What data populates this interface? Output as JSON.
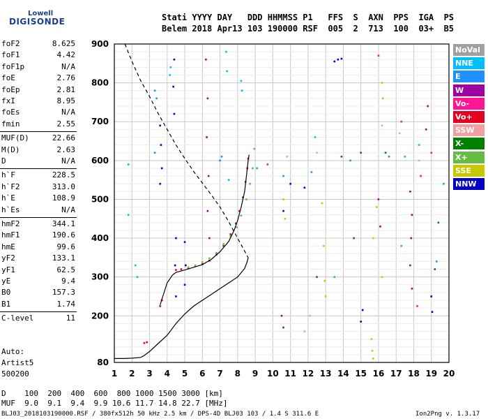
{
  "logo": {
    "line1": "Lowell",
    "line2": "DIGISONDE"
  },
  "header": {
    "line1": "Stati YYYY DAY   DDD HHMMSS P1   FFS  S  AXN  PPS  IGA  PS",
    "line2": "Belem 2018 Apr13 103 190000 RSF  005  2  713  100  03+  B5"
  },
  "params": [
    {
      "group": [
        {
          "name": "foF2",
          "value": "8.625"
        },
        {
          "name": "foF1",
          "value": "4.42"
        },
        {
          "name": "foF1p",
          "value": "N/A"
        },
        {
          "name": "foE",
          "value": "2.76"
        },
        {
          "name": "foEp",
          "value": "2.81"
        },
        {
          "name": "fxI",
          "value": "8.95"
        },
        {
          "name": "foEs",
          "value": "N/A"
        },
        {
          "name": "fmin",
          "value": "2.55"
        }
      ]
    },
    {
      "group": [
        {
          "name": "MUF(D)",
          "value": "22.66"
        },
        {
          "name": "M(D)",
          "value": "2.63"
        },
        {
          "name": "D",
          "value": "N/A"
        }
      ]
    },
    {
      "group": [
        {
          "name": "h`F",
          "value": "228.5"
        },
        {
          "name": "h`F2",
          "value": "313.0"
        },
        {
          "name": "h`E",
          "value": "108.9"
        },
        {
          "name": "h`Es",
          "value": "N/A"
        }
      ]
    },
    {
      "group": [
        {
          "name": "hmF2",
          "value": "344.1"
        },
        {
          "name": "hmF1",
          "value": "190.6"
        },
        {
          "name": "hmE",
          "value": "99.6"
        },
        {
          "name": "yF2",
          "value": "133.1"
        },
        {
          "name": "yF1",
          "value": "62.5"
        },
        {
          "name": "yE",
          "value": "9.4"
        },
        {
          "name": "B0",
          "value": "157.3"
        },
        {
          "name": "B1",
          "value": "1.74"
        }
      ]
    },
    {
      "group": [
        {
          "name": "C-level",
          "value": "11"
        }
      ]
    }
  ],
  "auto": {
    "line1": "Auto:",
    "line2": "Artist5",
    "line3": "500200"
  },
  "footer": {
    "line1": "D    100  200  400  600  800 1000 1500 3000 [km]",
    "line2": "MUF  9.0  9.1  9.4  9.9 10.6 11.7 14.8 22.7 [MHz]"
  },
  "credit": {
    "left": "BLJ03_2018103190000.RSF / 380fx512h 50 kHz 2.5 km / DPS-4D BLJ03 103 / 1.4 S 311.6 E",
    "right": "Ion2Png v. 1.3.17"
  },
  "legend": [
    {
      "label": "NoVal",
      "color": "#a0a0a0"
    },
    {
      "label": "NNE",
      "color": "#00bfff"
    },
    {
      "label": "E",
      "color": "#1e90ff"
    },
    {
      "label": "W",
      "color": "#a000a0"
    },
    {
      "label": "Vo-",
      "color": "#ff1493"
    },
    {
      "label": "Vo+",
      "color": "#e60020"
    },
    {
      "label": "SSW",
      "color": "#f0a0a0"
    },
    {
      "label": "X-",
      "color": "#008000"
    },
    {
      "label": "X+",
      "color": "#66bb44"
    },
    {
      "label": "SSE",
      "color": "#c8c800"
    },
    {
      "label": "NNW",
      "color": "#0000c8"
    }
  ],
  "chart_data": {
    "type": "scatter",
    "xlabel": "",
    "ylabel": "",
    "xlim": [
      1,
      20
    ],
    "ylim": [
      80,
      900
    ],
    "x_ticks": [
      1,
      2,
      3,
      4,
      5,
      6,
      7,
      8,
      9,
      10,
      11,
      12,
      13,
      14,
      15,
      16,
      17,
      18,
      19,
      20
    ],
    "y_ticks": [
      80,
      200,
      300,
      400,
      500,
      600,
      700,
      800,
      900
    ],
    "grid": true,
    "series": [
      {
        "name": "Vo+",
        "color": "#e60020",
        "points": [
          [
            2.7,
            130
          ],
          [
            2.85,
            132
          ],
          [
            3.6,
            225
          ],
          [
            3.7,
            240
          ],
          [
            4.5,
            318
          ],
          [
            4.8,
            320
          ],
          [
            5.2,
            323
          ],
          [
            5.6,
            328
          ],
          [
            6.0,
            333
          ],
          [
            6.4,
            342
          ],
          [
            6.8,
            358
          ],
          [
            7.2,
            380
          ],
          [
            7.6,
            410
          ],
          [
            7.9,
            438
          ],
          [
            8.1,
            470
          ],
          [
            8.3,
            505
          ],
          [
            8.45,
            545
          ],
          [
            8.55,
            580
          ],
          [
            8.6,
            605
          ]
        ]
      },
      {
        "name": "X+",
        "color": "#66bb44",
        "points": [
          [
            5.2,
            325
          ],
          [
            5.6,
            330
          ],
          [
            6.0,
            338
          ],
          [
            6.4,
            348
          ],
          [
            6.8,
            362
          ],
          [
            7.2,
            385
          ],
          [
            7.6,
            405
          ],
          [
            7.95,
            428
          ],
          [
            8.2,
            458
          ],
          [
            8.5,
            500
          ],
          [
            8.7,
            540
          ],
          [
            8.85,
            580
          ],
          [
            8.95,
            630
          ]
        ]
      },
      {
        "name": "W",
        "color": "#a000a0",
        "points": [
          [
            6.2,
            860
          ],
          [
            6.3,
            760
          ],
          [
            6.25,
            660
          ],
          [
            6.35,
            560
          ],
          [
            6.3,
            470
          ],
          [
            6.4,
            400
          ],
          [
            17.8,
            520
          ],
          [
            17.9,
            460
          ],
          [
            17.85,
            400
          ],
          [
            17.8,
            330
          ],
          [
            17.9,
            270
          ],
          [
            10.5,
            200
          ],
          [
            10.6,
            170
          ],
          [
            16.0,
            500
          ],
          [
            16.1,
            430
          ],
          [
            18.8,
            740
          ],
          [
            18.7,
            680
          ]
        ]
      },
      {
        "name": "NNW",
        "color": "#0000c8",
        "points": [
          [
            3.6,
            690
          ],
          [
            3.65,
            640
          ],
          [
            3.7,
            580
          ],
          [
            3.6,
            540
          ],
          [
            4.4,
            860
          ],
          [
            4.35,
            790
          ],
          [
            4.4,
            720
          ],
          [
            4.5,
            400
          ],
          [
            4.45,
            330
          ],
          [
            4.5,
            250
          ],
          [
            5.0,
            390
          ],
          [
            5.05,
            330
          ],
          [
            5.0,
            280
          ],
          [
            13.5,
            855
          ],
          [
            13.7,
            860
          ],
          [
            13.9,
            862
          ],
          [
            10.6,
            470
          ],
          [
            11.0,
            540
          ],
          [
            11.8,
            530
          ],
          [
            15.1,
            215
          ],
          [
            15.0,
            185
          ],
          [
            19.0,
            250
          ],
          [
            19.05,
            210
          ]
        ]
      },
      {
        "name": "SSE",
        "color": "#c8c800",
        "points": [
          [
            10.6,
            500
          ],
          [
            10.7,
            450
          ],
          [
            12.8,
            490
          ],
          [
            12.9,
            380
          ],
          [
            12.95,
            290
          ],
          [
            13.0,
            250
          ],
          [
            15.6,
            140
          ],
          [
            15.65,
            110
          ],
          [
            15.7,
            90
          ],
          [
            16.2,
            800
          ],
          [
            16.25,
            760
          ],
          [
            16.2,
            300
          ],
          [
            15.9,
            480
          ],
          [
            15.7,
            400
          ]
        ]
      },
      {
        "name": "NNE",
        "color": "#00bfff",
        "points": [
          [
            1.8,
            590
          ],
          [
            1.8,
            460
          ],
          [
            2.2,
            330
          ],
          [
            2.3,
            300
          ],
          [
            4.2,
            840
          ],
          [
            4.15,
            820
          ],
          [
            7.35,
            880
          ],
          [
            7.4,
            830
          ],
          [
            8.2,
            805
          ],
          [
            8.25,
            780
          ],
          [
            7.5,
            550
          ],
          [
            12.4,
            660
          ],
          [
            13.5,
            300
          ],
          [
            17.3,
            380
          ],
          [
            17.5,
            610
          ],
          [
            18.3,
            640
          ]
        ]
      },
      {
        "name": "E",
        "color": "#1e90ff",
        "points": [
          [
            3.3,
            780
          ],
          [
            3.4,
            760
          ],
          [
            3.3,
            620
          ],
          [
            7.0,
            600
          ],
          [
            7.1,
            610
          ],
          [
            9.1,
            580
          ],
          [
            10.6,
            560
          ],
          [
            12.2,
            570
          ],
          [
            14.4,
            600
          ],
          [
            16.6,
            610
          ],
          [
            19.3,
            340
          ],
          [
            19.7,
            540
          ]
        ]
      },
      {
        "name": "X-",
        "color": "#008000",
        "points": [
          [
            13.9,
            610
          ],
          [
            14.6,
            400
          ],
          [
            15.0,
            620
          ],
          [
            16.4,
            620
          ],
          [
            19.2,
            320
          ],
          [
            19.4,
            440
          ],
          [
            12.5,
            300
          ]
        ]
      },
      {
        "name": "SSW",
        "color": "#f0a0a0",
        "points": [
          [
            12.1,
            200
          ],
          [
            11.8,
            160
          ],
          [
            10.8,
            610
          ],
          [
            12.5,
            620
          ],
          [
            16.2,
            690
          ],
          [
            17.2,
            670
          ],
          [
            18.3,
            600
          ]
        ]
      },
      {
        "name": "Vo-",
        "color": "#ff1493",
        "points": [
          [
            16.0,
            870
          ],
          [
            17.3,
            700
          ],
          [
            18.4,
            560
          ],
          [
            9.7,
            590
          ],
          [
            18.2,
            225
          ],
          [
            19.0,
            620
          ]
        ]
      }
    ],
    "lines": [
      {
        "style": "solid",
        "points": [
          [
            1.0,
            90
          ],
          [
            1.5,
            90
          ],
          [
            2.0,
            91
          ],
          [
            2.5,
            93
          ],
          [
            2.7,
            98
          ],
          [
            3.0,
            108
          ],
          [
            3.4,
            125
          ],
          [
            4.0,
            150
          ],
          [
            4.5,
            180
          ],
          [
            5.0,
            205
          ],
          [
            5.5,
            225
          ],
          [
            6.0,
            240
          ],
          [
            6.5,
            255
          ],
          [
            7.0,
            270
          ],
          [
            7.5,
            285
          ],
          [
            8.0,
            300
          ],
          [
            8.4,
            322
          ],
          [
            8.55,
            340
          ],
          [
            8.6,
            350
          ]
        ]
      },
      {
        "style": "solid",
        "points": [
          [
            3.6,
            228
          ],
          [
            3.75,
            250
          ],
          [
            4.0,
            285
          ],
          [
            4.3,
            305
          ],
          [
            4.5,
            312
          ],
          [
            5.0,
            318
          ],
          [
            5.5,
            325
          ],
          [
            6.0,
            332
          ],
          [
            6.5,
            345
          ],
          [
            7.0,
            365
          ],
          [
            7.5,
            392
          ],
          [
            7.8,
            420
          ],
          [
            8.0,
            445
          ],
          [
            8.2,
            480
          ],
          [
            8.4,
            520
          ],
          [
            8.5,
            560
          ],
          [
            8.6,
            600
          ],
          [
            8.65,
            615
          ]
        ]
      },
      {
        "style": "dashed",
        "points": [
          [
            1.6,
            900
          ],
          [
            2.0,
            855
          ],
          [
            2.5,
            805
          ],
          [
            3.0,
            765
          ],
          [
            3.5,
            720
          ],
          [
            4.0,
            680
          ],
          [
            4.5,
            640
          ],
          [
            5.0,
            605
          ],
          [
            5.5,
            572
          ],
          [
            6.0,
            542
          ],
          [
            6.5,
            512
          ],
          [
            7.0,
            480
          ],
          [
            7.5,
            442
          ],
          [
            8.0,
            400
          ],
          [
            8.3,
            375
          ],
          [
            8.6,
            350
          ]
        ]
      }
    ]
  }
}
